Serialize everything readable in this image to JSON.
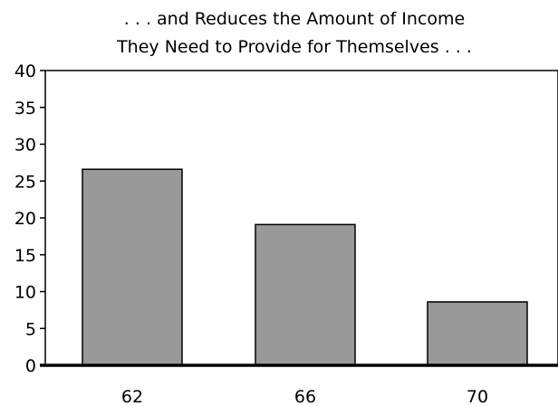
{
  "chart_data": {
    "type": "bar",
    "title_lines": [
      ". . . and Reduces the Amount of Income",
      "They Need to Provide for Themselves . . ."
    ],
    "xlabel": "",
    "ylabel": "",
    "categories": [
      "62",
      "66",
      "70"
    ],
    "values": [
      26.6,
      19.1,
      8.6
    ],
    "ylim": [
      0,
      40
    ],
    "yticks": [
      0,
      5,
      10,
      15,
      20,
      25,
      30,
      35,
      40
    ],
    "grid": false,
    "legend": "none",
    "colors": {
      "bar_fill": "#999999",
      "bar_stroke": "#000000",
      "axis": "#000000"
    }
  }
}
